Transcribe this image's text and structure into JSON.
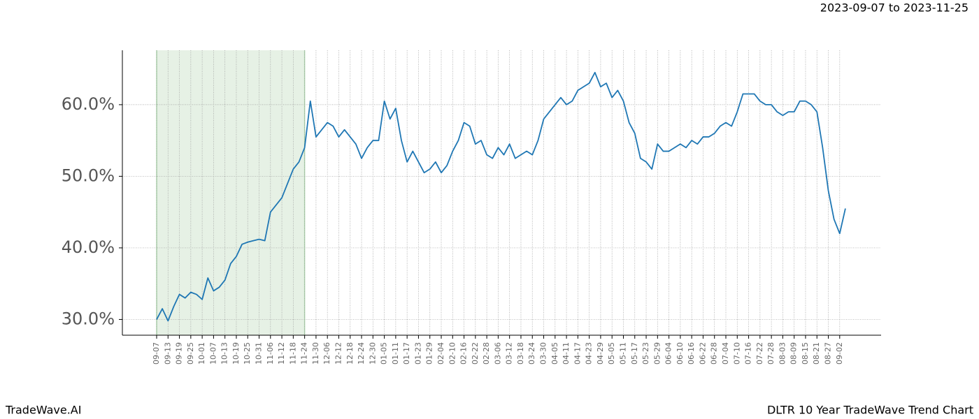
{
  "chart_data": {
    "type": "line",
    "title": "2023-09-07 to 2023-11-25",
    "footer_left": "TradeWave.AI",
    "footer_right": "DLTR 10 Year TradeWave Trend Chart",
    "categories": [
      "09-07",
      null,
      "09-13",
      null,
      "09-19",
      null,
      "09-25",
      null,
      "10-01",
      null,
      "10-07",
      null,
      "10-13",
      null,
      "10-19",
      null,
      "10-25",
      null,
      "10-31",
      null,
      "11-06",
      null,
      "11-12",
      null,
      "11-18",
      null,
      "11-24",
      null,
      "11-30",
      null,
      "12-06",
      null,
      "12-12",
      null,
      "12-18",
      null,
      "12-24",
      null,
      "12-30",
      null,
      "01-05",
      null,
      "01-11",
      null,
      "01-17",
      null,
      "01-23",
      null,
      "01-29",
      null,
      "02-04",
      null,
      "02-10",
      null,
      "02-16",
      null,
      "02-22",
      null,
      "02-28",
      null,
      "03-06",
      null,
      "03-12",
      null,
      "03-18",
      null,
      "03-24",
      null,
      "03-30",
      null,
      "04-05",
      null,
      "04-11",
      null,
      "04-17",
      null,
      "04-23",
      null,
      "04-29",
      null,
      "05-05",
      null,
      "05-11",
      null,
      "05-17",
      null,
      "05-23",
      null,
      "05-29",
      null,
      "06-04",
      null,
      "06-10",
      null,
      "06-16",
      null,
      "06-22",
      null,
      "06-28",
      null,
      "07-04",
      null,
      "07-10",
      null,
      "07-16",
      null,
      "07-22",
      null,
      "07-28",
      null,
      "08-03",
      null,
      "08-09",
      null,
      "08-15",
      null,
      "08-21",
      null,
      "08-27",
      null,
      "09-02",
      null
    ],
    "values": [
      30.0,
      31.5,
      29.8,
      31.8,
      33.5,
      33.0,
      33.8,
      33.5,
      32.8,
      35.8,
      34.0,
      34.5,
      35.5,
      37.8,
      38.8,
      40.5,
      40.8,
      41.0,
      41.2,
      41.0,
      45.0,
      46.0,
      47.0,
      49.0,
      51.0,
      52.0,
      54.0,
      60.5,
      55.5,
      56.5,
      57.5,
      57.0,
      55.5,
      56.5,
      55.5,
      54.5,
      52.5,
      54.0,
      55.0,
      55.0,
      60.5,
      58.0,
      59.5,
      55.0,
      52.0,
      53.5,
      52.0,
      50.5,
      51.0,
      52.0,
      50.5,
      51.5,
      53.5,
      55.0,
      57.5,
      57.0,
      54.5,
      55.0,
      53.0,
      52.5,
      54.0,
      53.0,
      54.5,
      52.5,
      53.0,
      53.5,
      53.0,
      55.0,
      58.0,
      59.0,
      60.0,
      61.0,
      60.0,
      60.5,
      62.0,
      62.5,
      63.0,
      64.5,
      62.5,
      63.0,
      61.0,
      62.0,
      60.5,
      57.5,
      56.0,
      52.5,
      52.0,
      51.0,
      54.5,
      53.5,
      53.5,
      54.0,
      54.5,
      54.0,
      55.0,
      54.5,
      55.5,
      55.5,
      56.0,
      57.0,
      57.5,
      57.0,
      59.0,
      61.5,
      61.5,
      61.5,
      60.5,
      60.0,
      60.0,
      59.0,
      58.5,
      59.0,
      59.0,
      60.5,
      60.5,
      60.0,
      59.0,
      54.0,
      48.0,
      44.0,
      42.0,
      45.5
    ],
    "color": "#1f77b4",
    "ylim": [
      27.8,
      67.6
    ],
    "yticks": [
      {
        "value": 30,
        "label": "30.0%"
      },
      {
        "value": 40,
        "label": "40.0%"
      },
      {
        "value": 50,
        "label": "50.0%"
      },
      {
        "value": 60,
        "label": "60.0%"
      }
    ],
    "grid": true,
    "highlight_start": "09-07",
    "highlight_end": "11-24"
  }
}
